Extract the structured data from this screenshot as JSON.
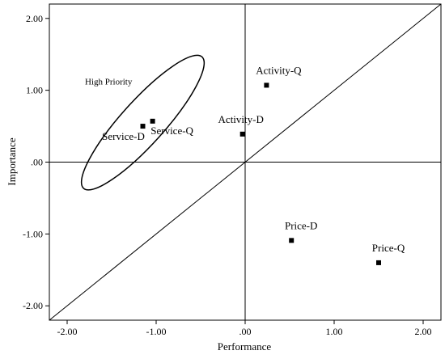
{
  "chart_data": {
    "type": "scatter",
    "title": "",
    "xlabel": "Performance",
    "ylabel": "Importance",
    "xlim": [
      -2.2,
      2.2
    ],
    "ylim": [
      -2.2,
      2.2
    ],
    "x_ticks": [
      -2,
      -1,
      0,
      1,
      2
    ],
    "x_tick_labels": [
      "-2.00",
      "-1.00",
      ".00",
      "1.00",
      "2.00"
    ],
    "y_ticks": [
      2,
      1,
      0,
      -1,
      -2
    ],
    "y_tick_labels": [
      "2.00",
      "1.00",
      ".00",
      "-1.00",
      "-2.00"
    ],
    "grid": false,
    "reference_lines": [
      "x = 0",
      "y = 0",
      "y = x"
    ],
    "points": [
      {
        "label": "Activity-Q",
        "x": 0.24,
        "y": 1.07
      },
      {
        "label": "Activity-D",
        "x": -0.03,
        "y": 0.39
      },
      {
        "label": "Service-D",
        "x": -1.15,
        "y": 0.5
      },
      {
        "label": "Service-Q",
        "x": -1.04,
        "y": 0.57
      },
      {
        "label": "Price-D",
        "x": 0.52,
        "y": -1.09
      },
      {
        "label": "Price-Q",
        "x": 1.5,
        "y": -1.4
      }
    ],
    "annotation": {
      "text": "High Priority",
      "shape": "ellipse",
      "center": [
        -1.15,
        0.55
      ],
      "angle_deg": 48,
      "radii": [
        1.1,
        0.27
      ]
    },
    "point_color": "#000000",
    "line_color": "#000000"
  }
}
